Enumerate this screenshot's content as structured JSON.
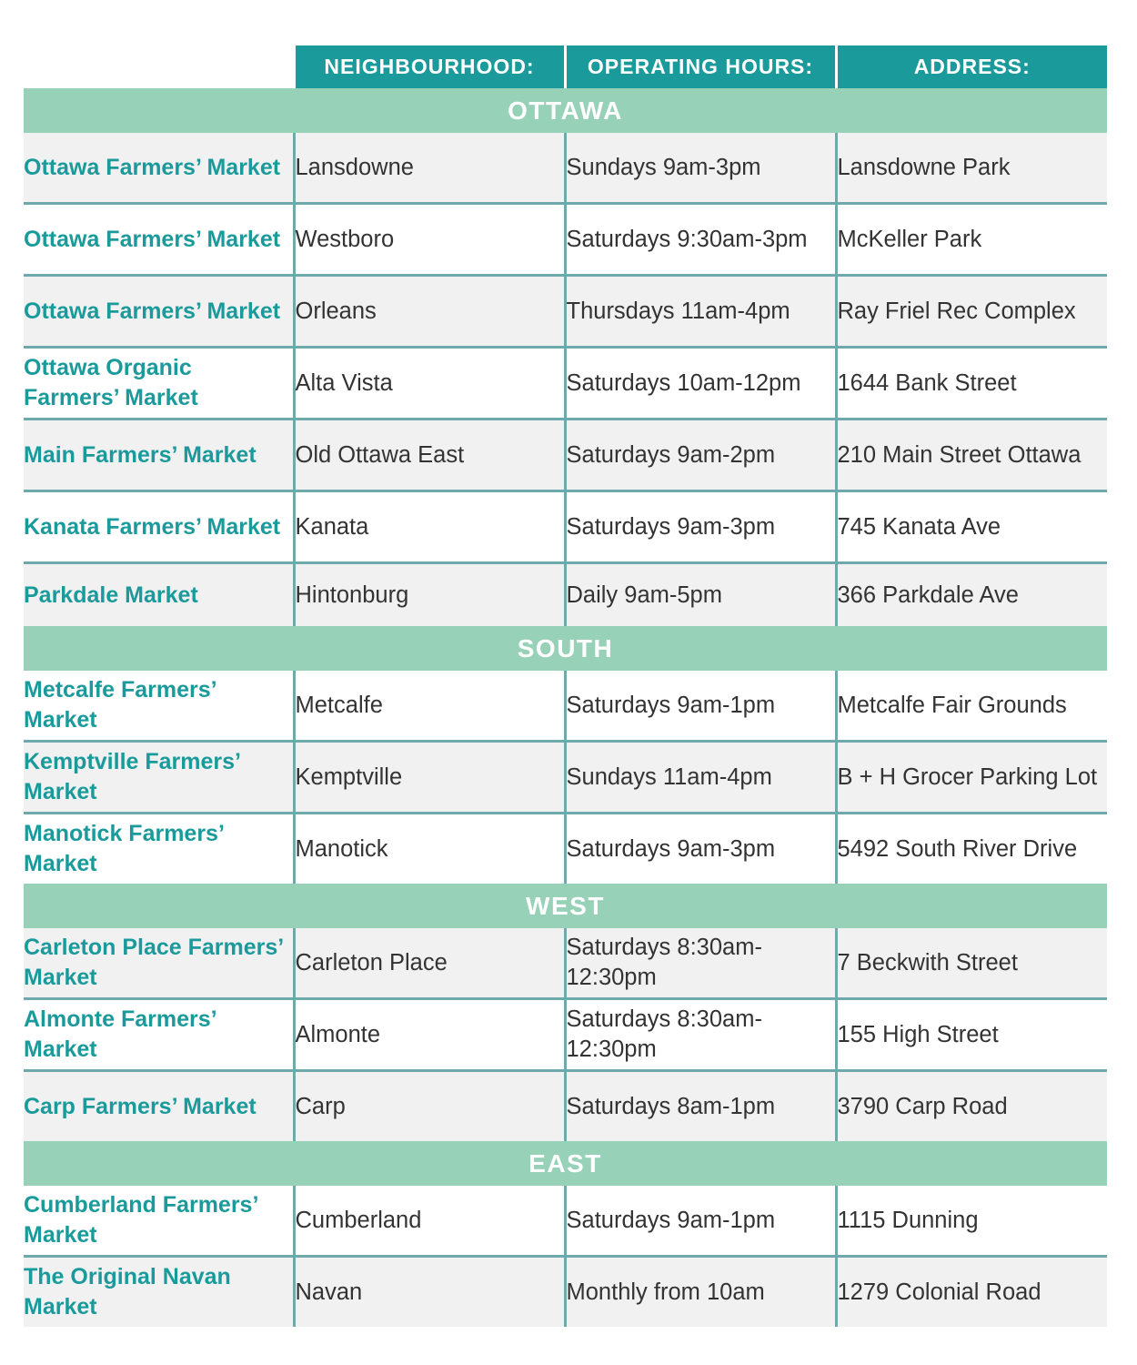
{
  "headers": [
    "",
    "NEIGHBOURHOOD:",
    "OPERATING HOURS:",
    "ADDRESS:"
  ],
  "colors": {
    "header": "#1b9a9b",
    "section_band": "#97d1b8",
    "market_name": "#1b9a9b",
    "row_alt": "#f1f1f2"
  },
  "sections": [
    {
      "title": "OTTAWA",
      "rows": [
        {
          "name": "Ottawa Farmers’ Market",
          "neighbourhood": "Lansdowne",
          "hours": "Sundays 9am-3pm",
          "address": "Lansdowne Park"
        },
        {
          "name": "Ottawa Farmers’ Market",
          "neighbourhood": "Westboro",
          "hours": "Saturdays 9:30am-3pm",
          "address": "McKeller Park"
        },
        {
          "name": "Ottawa Farmers’ Market",
          "neighbourhood": "Orleans",
          "hours": "Thursdays 11am-4pm",
          "address": "Ray Friel Rec Complex"
        },
        {
          "name": "Ottawa Organic Farmers’ Market",
          "neighbourhood": "Alta Vista",
          "hours": "Saturdays 10am-12pm",
          "address": "1644 Bank Street"
        },
        {
          "name": "Main Farmers’ Market",
          "neighbourhood": "Old Ottawa East",
          "hours": "Saturdays 9am-2pm",
          "address": "210 Main Street Ottawa"
        },
        {
          "name": "Kanata Farmers’ Market",
          "neighbourhood": "Kanata",
          "hours": "Saturdays 9am-3pm",
          "address": "745 Kanata Ave"
        },
        {
          "name": "Parkdale Market",
          "neighbourhood": "Hintonburg",
          "hours": "Daily 9am-5pm",
          "address": "366 Parkdale Ave"
        }
      ]
    },
    {
      "title": "SOUTH",
      "rows": [
        {
          "name": "Metcalfe Farmers’ Market",
          "neighbourhood": "Metcalfe",
          "hours": "Saturdays 9am-1pm",
          "address": "Metcalfe Fair Grounds"
        },
        {
          "name": "Kemptville Farmers’ Market",
          "neighbourhood": "Kemptville",
          "hours": "Sundays 11am-4pm",
          "address": "B + H Grocer Parking Lot"
        },
        {
          "name": "Manotick Farmers’ Market",
          "neighbourhood": "Manotick",
          "hours": "Saturdays 9am-3pm",
          "address": "5492 South River Drive"
        }
      ]
    },
    {
      "title": "WEST",
      "rows": [
        {
          "name": "Carleton Place Farmers’ Market",
          "neighbourhood": "Carleton Place",
          "hours": "Saturdays 8:30am-12:30pm",
          "address": "7 Beckwith Street"
        },
        {
          "name": "Almonte Farmers’ Market",
          "neighbourhood": "Almonte",
          "hours": "Saturdays 8:30am-12:30pm",
          "address": "155 High Street"
        },
        {
          "name": "Carp Farmers’ Market",
          "neighbourhood": "Carp",
          "hours": "Saturdays 8am-1pm",
          "address": "3790 Carp Road"
        }
      ]
    },
    {
      "title": "EAST",
      "rows": [
        {
          "name": "Cumberland Farmers’ Market",
          "neighbourhood": "Cumberland",
          "hours": "Saturdays 9am-1pm",
          "address": "1115 Dunning"
        },
        {
          "name": "The Original Navan Market",
          "neighbourhood": "Navan",
          "hours": "Monthly from 10am",
          "address": "1279 Colonial Road"
        }
      ]
    }
  ]
}
